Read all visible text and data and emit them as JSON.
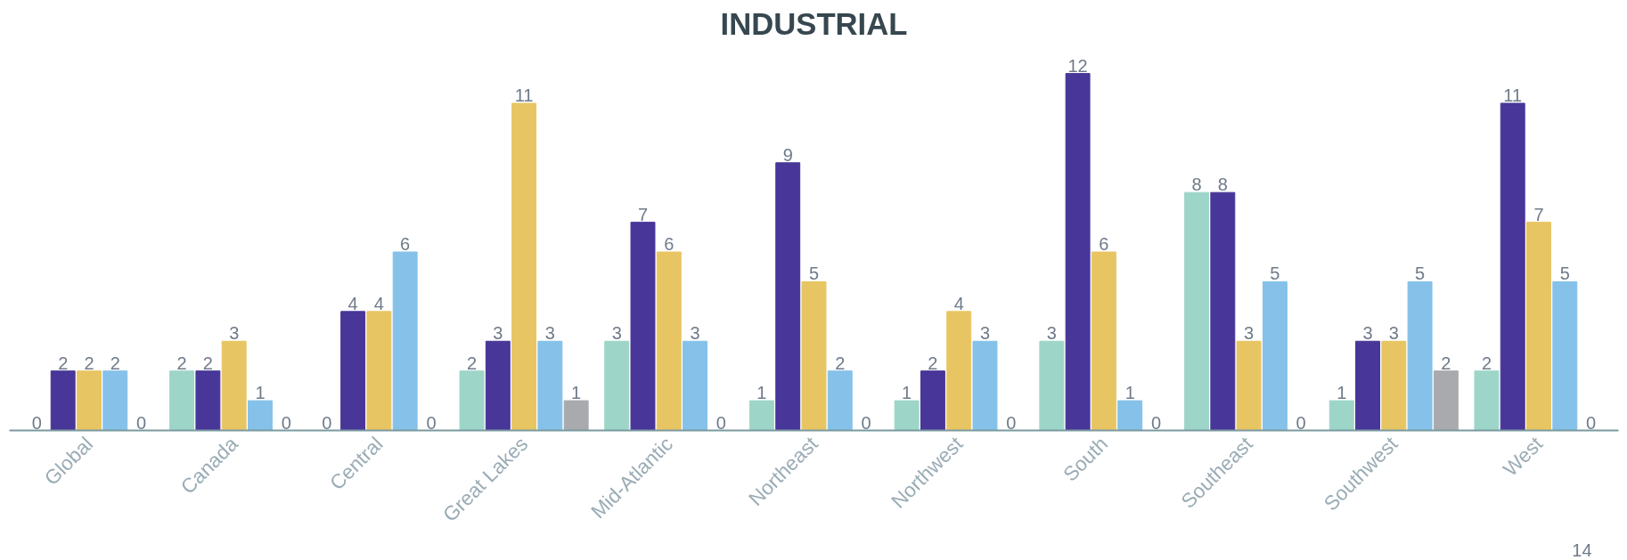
{
  "chart_data": {
    "type": "bar",
    "title": "INDUSTRIAL",
    "categories": [
      "Global",
      "Canada",
      "Central",
      "Great Lakes",
      "Mid-Atlantic",
      "Northeast",
      "Northwest",
      "South",
      "Southeast",
      "Southwest",
      "West"
    ],
    "series": [
      {
        "color": "#9dd6c8",
        "values": [
          0,
          2,
          0,
          2,
          3,
          1,
          1,
          3,
          8,
          1,
          2
        ]
      },
      {
        "color": "#483698",
        "values": [
          2,
          2,
          4,
          3,
          7,
          9,
          2,
          12,
          8,
          3,
          11
        ]
      },
      {
        "color": "#e8c563",
        "values": [
          2,
          3,
          4,
          11,
          6,
          5,
          4,
          6,
          3,
          3,
          7
        ]
      },
      {
        "color": "#85c1e9",
        "values": [
          2,
          1,
          6,
          3,
          3,
          2,
          3,
          1,
          5,
          5,
          5
        ]
      },
      {
        "color": "#a9aaae",
        "values": [
          0,
          0,
          0,
          1,
          0,
          0,
          0,
          0,
          0,
          2,
          0
        ]
      }
    ],
    "data_labels": true,
    "grid": false,
    "tick_labels": "x",
    "annotations": [
      "14"
    ]
  }
}
